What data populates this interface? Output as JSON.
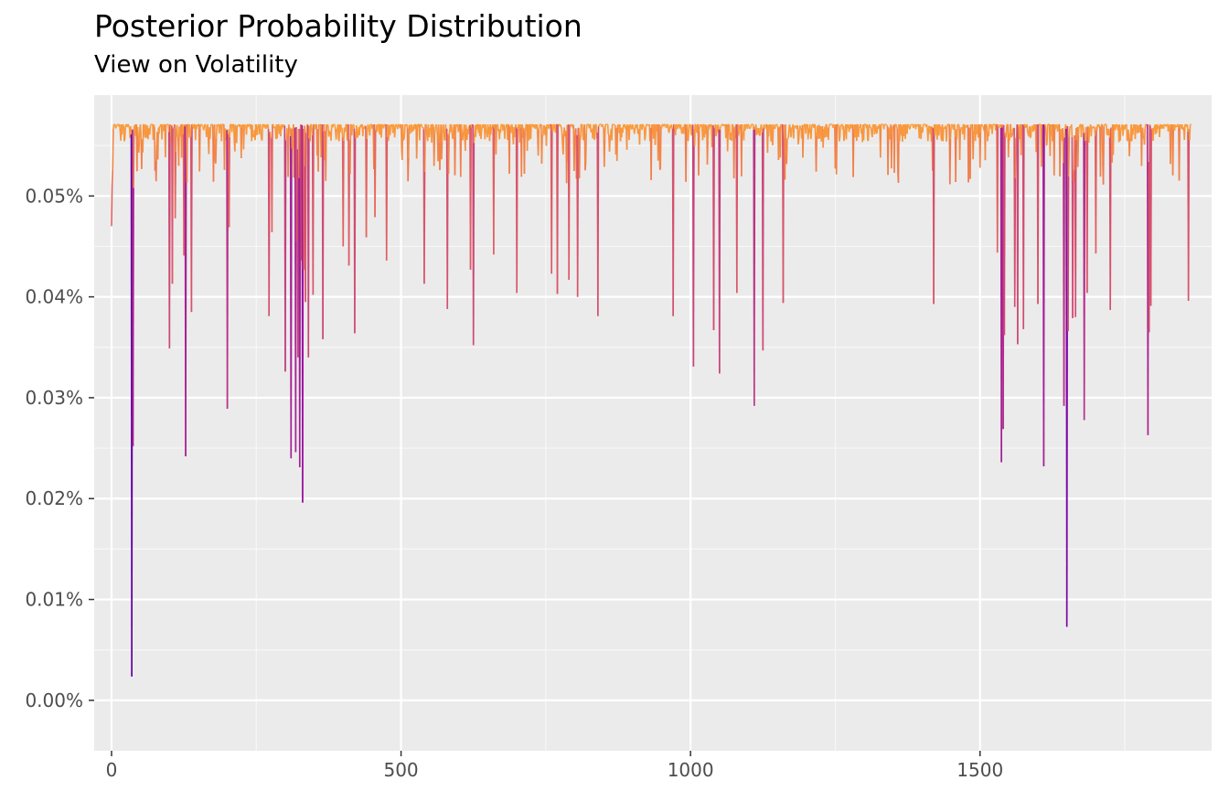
{
  "chart_data": {
    "type": "line",
    "title": "Posterior Probability Distribution",
    "subtitle": "View on Volatility",
    "xlabel": "",
    "ylabel": "",
    "xlim": [
      -30,
      1900
    ],
    "ylim": [
      -5e-05,
      0.0006
    ],
    "x_ticks": [
      0,
      500,
      1000,
      1500
    ],
    "x_tick_labels": [
      "0",
      "500",
      "1000",
      "1500"
    ],
    "y_ticks": [
      0,
      0.0001,
      0.0002,
      0.0003,
      0.0004,
      0.0005
    ],
    "y_tick_labels": [
      "0.00%",
      "0.01%",
      "0.02%",
      "0.03%",
      "0.04%",
      "0.05%"
    ],
    "grid": true,
    "legend": "none",
    "color_scale": {
      "low": "#0d0887",
      "mid": "#9c179e",
      "mid2": "#d8576b",
      "high": "#fb9f3a"
    },
    "series": [
      {
        "n_points": 1866,
        "baseline": 0.000571,
        "dips": [
          [
            0,
            0.00047
          ],
          [
            35,
            2.36e-05
          ],
          [
            37,
            0.000252
          ],
          [
            38,
            0.000508
          ],
          [
            100,
            0.000349
          ],
          [
            105,
            0.000413
          ],
          [
            110,
            0.000478
          ],
          [
            125,
            0.000441
          ],
          [
            128,
            0.000242
          ],
          [
            130,
            0.000513
          ],
          [
            138,
            0.000385
          ],
          [
            200,
            0.000289
          ],
          [
            203,
            0.000469
          ],
          [
            272,
            0.000381
          ],
          [
            277,
            0.000464
          ],
          [
            300,
            0.000326
          ],
          [
            305,
            0.000519
          ],
          [
            310,
            0.00024
          ],
          [
            312,
            0.000547
          ],
          [
            318,
            0.000246
          ],
          [
            320,
            0.000455
          ],
          [
            322,
            0.00034
          ],
          [
            325,
            0.000231
          ],
          [
            328,
            0.000436
          ],
          [
            330,
            0.000196
          ],
          [
            332,
            0.000427
          ],
          [
            335,
            0.000395
          ],
          [
            340,
            0.00034
          ],
          [
            348,
            0.000402
          ],
          [
            365,
            0.000358
          ],
          [
            400,
            0.00045
          ],
          [
            410,
            0.000431
          ],
          [
            420,
            0.000364
          ],
          [
            440,
            0.000459
          ],
          [
            455,
            0.000479
          ],
          [
            475,
            0.000436
          ],
          [
            540,
            0.000413
          ],
          [
            580,
            0.000388
          ],
          [
            620,
            0.000427
          ],
          [
            625,
            0.000352
          ],
          [
            660,
            0.000442
          ],
          [
            700,
            0.000404
          ],
          [
            760,
            0.000423
          ],
          [
            770,
            0.000403
          ],
          [
            790,
            0.000417
          ],
          [
            805,
            0.0004
          ],
          [
            840,
            0.000381
          ],
          [
            970,
            0.000381
          ],
          [
            1005,
            0.000331
          ],
          [
            1040,
            0.000367
          ],
          [
            1050,
            0.000324
          ],
          [
            1080,
            0.000404
          ],
          [
            1110,
            0.000292
          ],
          [
            1125,
            0.000347
          ],
          [
            1160,
            0.000394
          ],
          [
            1420,
            0.000393
          ],
          [
            1530,
            0.000444
          ],
          [
            1537,
            0.000236
          ],
          [
            1540,
            0.000269
          ],
          [
            1542,
            0.000362
          ],
          [
            1560,
            0.00039
          ],
          [
            1565,
            0.000353
          ],
          [
            1575,
            0.000368
          ],
          [
            1600,
            0.000393
          ],
          [
            1610,
            0.000232
          ],
          [
            1645,
            0.000292
          ],
          [
            1650,
            7.29e-05
          ],
          [
            1652,
            0.000366
          ],
          [
            1660,
            0.000379
          ],
          [
            1665,
            0.00038
          ],
          [
            1680,
            0.000278
          ],
          [
            1685,
            0.000404
          ],
          [
            1700,
            0.000443
          ],
          [
            1725,
            0.000387
          ],
          [
            1790,
            0.000263
          ],
          [
            1792,
            0.000365
          ],
          [
            1795,
            0.000391
          ],
          [
            1860,
            0.000396
          ]
        ]
      }
    ]
  }
}
